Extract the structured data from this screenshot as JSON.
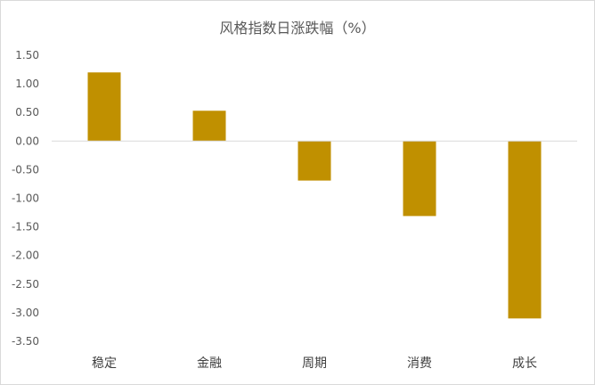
{
  "chart_data": {
    "type": "bar",
    "title": "风格指数日涨跌幅（%）",
    "categories": [
      "稳定",
      "金融",
      "周期",
      "消费",
      "成长"
    ],
    "values": [
      1.2,
      0.53,
      -0.69,
      -1.31,
      -3.1
    ],
    "ylim": [
      -3.5,
      1.5
    ],
    "yticks": [
      "1.50",
      "1.00",
      "0.50",
      "0.00",
      "-0.50",
      "-1.00",
      "-1.50",
      "-2.00",
      "-2.50",
      "-3.00",
      "-3.50"
    ],
    "xlabel": "",
    "ylabel": "",
    "grid": false,
    "legend": "none",
    "bar_color": "#C09000",
    "axis_color": "#d9d9d9"
  }
}
